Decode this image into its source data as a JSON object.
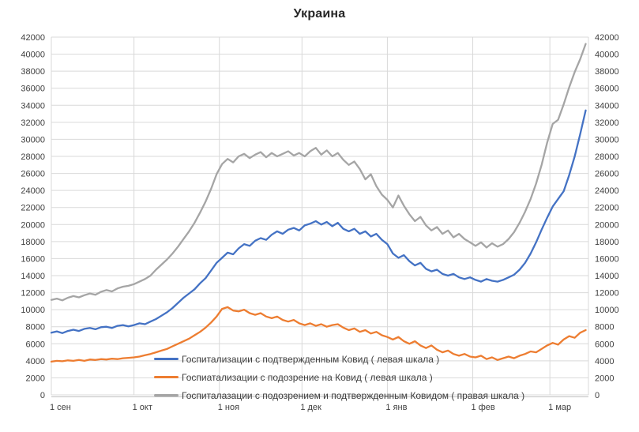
{
  "chart_data": {
    "type": "line",
    "title": "Украина",
    "grid": true,
    "legend_position": "inside-bottom-left",
    "colors": {
      "grid": "#D9D9D9",
      "axis": "#BFBFBF",
      "tick_text": "#404040",
      "title_text": "#262626"
    },
    "x_axis": {
      "tick_labels": [
        "1 сен",
        "1 окт",
        "1 ноя",
        "1 дек",
        "1 янв",
        "1 фев",
        "1 мар"
      ],
      "tick_days": [
        0,
        30,
        61,
        91,
        122,
        153,
        181
      ],
      "max_day": 195,
      "start_day": 0,
      "day_step": 2
    },
    "y_axis": {
      "min": 0,
      "max": 42000,
      "step": 2000,
      "ticks": [
        0,
        2000,
        4000,
        6000,
        8000,
        10000,
        12000,
        14000,
        16000,
        18000,
        20000,
        22000,
        24000,
        26000,
        28000,
        30000,
        32000,
        34000,
        36000,
        38000,
        40000,
        42000
      ],
      "left_and_right": true
    },
    "series": [
      {
        "id": "confirmed",
        "name": "Госпитализации с подтвержденным Ковид ( левая шкала )",
        "color": "#4472C4",
        "axis": "left",
        "values": [
          7300,
          7450,
          7250,
          7500,
          7650,
          7500,
          7750,
          7850,
          7700,
          7950,
          8000,
          7850,
          8100,
          8200,
          8050,
          8200,
          8400,
          8300,
          8600,
          8900,
          9300,
          9700,
          10200,
          10800,
          11400,
          11900,
          12400,
          13100,
          13700,
          14600,
          15500,
          16100,
          16700,
          16500,
          17200,
          17700,
          17500,
          18100,
          18400,
          18200,
          18800,
          19200,
          18900,
          19400,
          19600,
          19300,
          19900,
          20100,
          20400,
          20000,
          20300,
          19800,
          20200,
          19500,
          19200,
          19500,
          18900,
          19200,
          18600,
          18900,
          18200,
          17700,
          16600,
          16100,
          16400,
          15700,
          15200,
          15500,
          14800,
          14500,
          14700,
          14200,
          14000,
          14200,
          13800,
          13600,
          13800,
          13500,
          13300,
          13600,
          13400,
          13300,
          13500,
          13800,
          14100,
          14700,
          15500,
          16600,
          17900,
          19400,
          20800,
          22100,
          23000,
          23900,
          25800,
          28000,
          30600,
          33400
        ]
      },
      {
        "id": "suspected",
        "name": "Госпиатализации с подозрение на Ковид ( левая шкала )",
        "color": "#ED7D31",
        "axis": "left",
        "values": [
          3900,
          4000,
          3950,
          4050,
          4000,
          4100,
          4000,
          4150,
          4100,
          4200,
          4150,
          4250,
          4200,
          4300,
          4350,
          4400,
          4500,
          4650,
          4800,
          5000,
          5200,
          5400,
          5700,
          6000,
          6300,
          6600,
          7000,
          7400,
          7900,
          8500,
          9200,
          10100,
          10300,
          9900,
          9800,
          10000,
          9600,
          9400,
          9600,
          9200,
          9000,
          9200,
          8800,
          8600,
          8800,
          8400,
          8200,
          8400,
          8100,
          8300,
          8000,
          8200,
          8300,
          7900,
          7600,
          7800,
          7400,
          7600,
          7200,
          7400,
          7000,
          6800,
          6500,
          6800,
          6300,
          6000,
          6300,
          5800,
          5500,
          5800,
          5300,
          5000,
          5200,
          4800,
          4600,
          4800,
          4500,
          4400,
          4600,
          4200,
          4400,
          4100,
          4300,
          4500,
          4300,
          4600,
          4800,
          5100,
          5000,
          5400,
          5800,
          6100,
          5900,
          6500,
          6900,
          6700,
          7300,
          7600
        ]
      },
      {
        "id": "total",
        "name": "Госпиталазации с подозрением и подтвержденным Ковидом ( правая шкала )",
        "color": "#A5A5A5",
        "axis": "right",
        "values": [
          11150,
          11300,
          11100,
          11400,
          11600,
          11450,
          11700,
          11900,
          11750,
          12100,
          12300,
          12150,
          12500,
          12700,
          12800,
          13000,
          13300,
          13600,
          14000,
          14700,
          15300,
          15900,
          16600,
          17400,
          18300,
          19200,
          20200,
          21400,
          22700,
          24200,
          25900,
          27100,
          27700,
          27300,
          28000,
          28300,
          27800,
          28200,
          28500,
          27900,
          28400,
          28000,
          28300,
          28600,
          28100,
          28400,
          28000,
          28600,
          29000,
          28200,
          28700,
          28000,
          28400,
          27600,
          27000,
          27400,
          26500,
          25300,
          25900,
          24500,
          23500,
          22900,
          22000,
          23400,
          22200,
          21200,
          20400,
          20900,
          19900,
          19300,
          19700,
          18900,
          19300,
          18500,
          18900,
          18300,
          17900,
          17500,
          17900,
          17300,
          17800,
          17400,
          17700,
          18300,
          19100,
          20200,
          21500,
          23000,
          24800,
          27000,
          29600,
          31800,
          32300,
          34100,
          36100,
          37900,
          39400,
          41200
        ]
      }
    ]
  }
}
